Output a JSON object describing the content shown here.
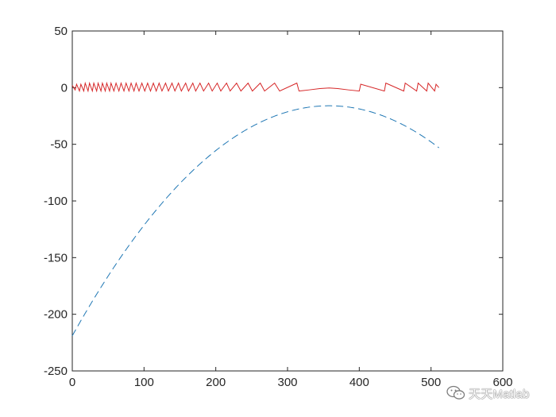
{
  "chart_data": {
    "type": "line",
    "title": "",
    "xlabel": "",
    "ylabel": "",
    "xlim": [
      0,
      600
    ],
    "ylim": [
      -250,
      50
    ],
    "xticks": [
      0,
      100,
      200,
      300,
      400,
      500,
      600
    ],
    "yticks": [
      -250,
      -200,
      -150,
      -100,
      -50,
      0,
      50
    ],
    "grid": false,
    "legend": "none",
    "series": [
      {
        "style": "solid",
        "color": "#d62728",
        "segments": [
          [
            [
              0,
              2
            ],
            [
              4,
              -2
            ],
            [
              6,
              3
            ],
            [
              10,
              -3
            ],
            [
              12,
              3
            ],
            [
              16,
              -3
            ],
            [
              18,
              4
            ],
            [
              22,
              -3
            ],
            [
              24,
              4
            ],
            [
              28,
              -3
            ],
            [
              30,
              4
            ],
            [
              34,
              -3
            ],
            [
              36,
              4
            ],
            [
              40,
              -3
            ],
            [
              42,
              4
            ],
            [
              46,
              -3
            ],
            [
              48,
              4
            ],
            [
              52,
              -3
            ],
            [
              54,
              4
            ],
            [
              58,
              -3
            ],
            [
              61,
              4
            ],
            [
              65,
              -3
            ],
            [
              68,
              4
            ],
            [
              72,
              -3
            ],
            [
              75,
              4
            ],
            [
              79,
              -3
            ],
            [
              82,
              4
            ],
            [
              86,
              -3
            ],
            [
              89,
              4
            ],
            [
              93,
              -3
            ],
            [
              97,
              4
            ],
            [
              101,
              -3
            ],
            [
              105,
              4
            ],
            [
              109,
              -3
            ],
            [
              113,
              4
            ],
            [
              117,
              -3
            ],
            [
              121,
              4
            ],
            [
              125,
              -3
            ],
            [
              130,
              4
            ],
            [
              134,
              -3
            ],
            [
              139,
              4
            ],
            [
              143,
              -3
            ],
            [
              148,
              4
            ],
            [
              152,
              -3
            ],
            [
              158,
              4
            ],
            [
              162,
              -3
            ],
            [
              168,
              4
            ],
            [
              172,
              -3
            ],
            [
              178,
              4
            ],
            [
              183,
              -3
            ],
            [
              190,
              4
            ],
            [
              195,
              -3
            ],
            [
              202,
              4
            ],
            [
              207,
              -3
            ],
            [
              215,
              4
            ],
            [
              220,
              -3
            ],
            [
              229,
              4
            ],
            [
              235,
              -3
            ],
            [
              245,
              4
            ],
            [
              251,
              -3
            ],
            [
              262,
              4
            ],
            [
              268,
              -3
            ],
            [
              282,
              4
            ],
            [
              289,
              -3
            ],
            [
              313,
              4
            ],
            [
              316,
              -3
            ]
          ],
          [
            [
              316,
              -3
            ],
            [
              330,
              -2
            ],
            [
              345,
              -0.8
            ],
            [
              358,
              -0.3
            ],
            [
              370,
              -0.8
            ],
            [
              385,
              -2
            ],
            [
              400,
              -3
            ],
            [
              402,
              3
            ],
            [
              435,
              -3
            ],
            [
              437,
              4
            ],
            [
              462,
              -3
            ],
            [
              464,
              4
            ],
            [
              480,
              -3
            ],
            [
              482,
              4
            ],
            [
              494,
              -3
            ],
            [
              496,
              4
            ],
            [
              505,
              -3
            ],
            [
              507,
              3
            ],
            [
              511,
              0
            ]
          ]
        ]
      },
      {
        "style": "dashed",
        "color": "#1f77b4",
        "function": "quadratic",
        "vertex": [
          358,
          -16
        ],
        "start": [
          0,
          -219
        ],
        "end": [
          511,
          -53
        ]
      }
    ]
  },
  "watermark": {
    "icon": "wechat-icon",
    "text": "天天Matlab"
  }
}
